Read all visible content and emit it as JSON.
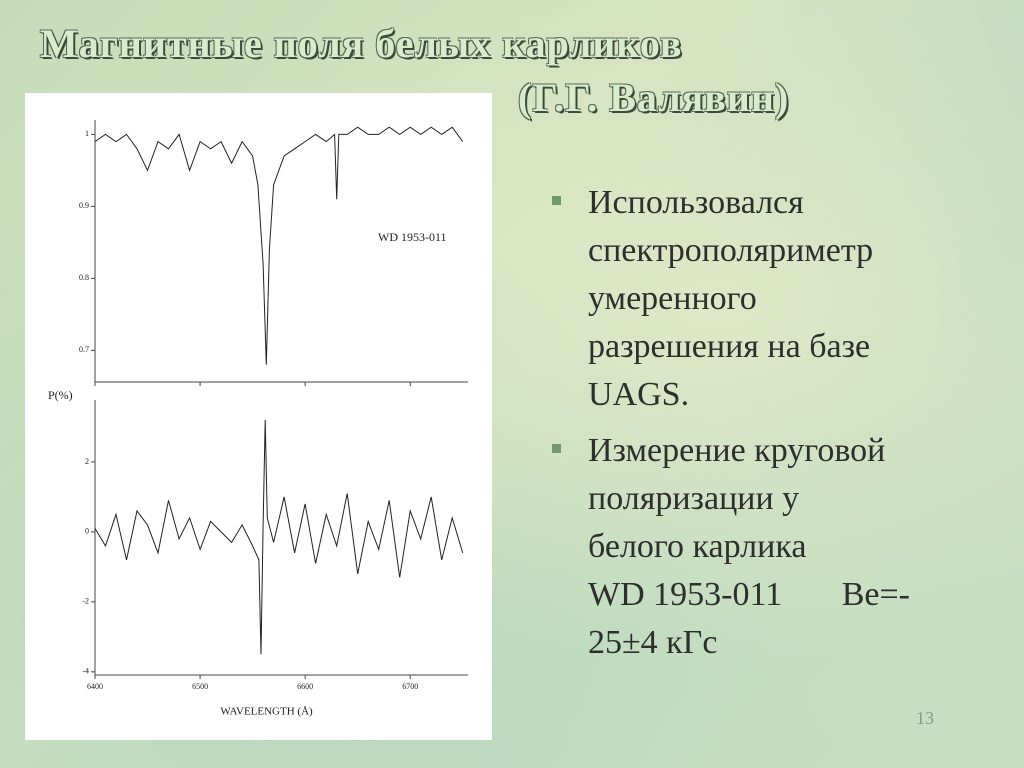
{
  "title": {
    "line1": "Магнитные поля белых карликов",
    "line2": "(Г.Г. Валявин)"
  },
  "bullets": [
    {
      "lines": [
        "Использовался",
        "спектрополяриметр",
        "умеренного",
        "разрешения на базе",
        "UAGS."
      ]
    },
    {
      "lines": [
        "Измерение круговой",
        "поляризации у",
        "белого карлика",
        "WD 1953-011       Be=-",
        "25±4 кГс"
      ]
    }
  ],
  "slide_number": "13",
  "figure": {
    "type": "line",
    "annotation": "WD 1953-011",
    "x_label": "WAVELENGTH (Å)",
    "xlim": [
      6400,
      6755
    ],
    "xticks": [
      6400,
      6500,
      6600,
      6700
    ],
    "panels": [
      {
        "ylim": [
          0.656,
          1.02
        ],
        "yticks": [
          1,
          0.9,
          0.8,
          0.7
        ],
        "color": "#222222",
        "x": [
          6400,
          6410,
          6420,
          6430,
          6440,
          6450,
          6460,
          6470,
          6480,
          6490,
          6500,
          6510,
          6520,
          6530,
          6540,
          6550,
          6555,
          6560,
          6563,
          6566,
          6570,
          6580,
          6590,
          6600,
          6610,
          6620,
          6628,
          6630,
          6632,
          6640,
          6650,
          6660,
          6670,
          6680,
          6690,
          6700,
          6710,
          6720,
          6730,
          6740,
          6750
        ],
        "values": [
          0.99,
          1.0,
          0.99,
          1.0,
          0.98,
          0.95,
          0.99,
          0.98,
          1.0,
          0.95,
          0.99,
          0.98,
          0.99,
          0.96,
          0.99,
          0.97,
          0.93,
          0.82,
          0.68,
          0.84,
          0.93,
          0.97,
          0.98,
          0.99,
          1.0,
          0.99,
          1.0,
          0.91,
          1.0,
          1.0,
          1.01,
          1.0,
          1.0,
          1.01,
          1.0,
          1.01,
          1.0,
          1.01,
          1.0,
          1.01,
          0.99
        ]
      },
      {
        "y_label": "P(%)",
        "ylim": [
          -4.09,
          3.77
        ],
        "yticks": [
          2,
          0,
          -2,
          -4
        ],
        "color": "#222222",
        "x": [
          6400,
          6410,
          6420,
          6430,
          6440,
          6450,
          6460,
          6470,
          6480,
          6490,
          6500,
          6510,
          6520,
          6530,
          6540,
          6550,
          6556,
          6558,
          6560,
          6562,
          6564,
          6570,
          6580,
          6590,
          6600,
          6610,
          6620,
          6630,
          6640,
          6650,
          6660,
          6670,
          6680,
          6690,
          6700,
          6710,
          6720,
          6730,
          6740,
          6750
        ],
        "values": [
          0.1,
          -0.4,
          0.5,
          -0.8,
          0.6,
          0.2,
          -0.6,
          0.9,
          -0.2,
          0.4,
          -0.5,
          0.3,
          0.0,
          -0.3,
          0.2,
          -0.4,
          -0.8,
          -3.5,
          0.2,
          3.2,
          0.4,
          -0.3,
          1.0,
          -0.6,
          0.8,
          -0.9,
          0.5,
          -0.4,
          1.1,
          -1.2,
          0.3,
          -0.5,
          0.9,
          -1.3,
          0.6,
          -0.2,
          1.0,
          -0.8,
          0.4,
          -0.6
        ]
      }
    ]
  }
}
